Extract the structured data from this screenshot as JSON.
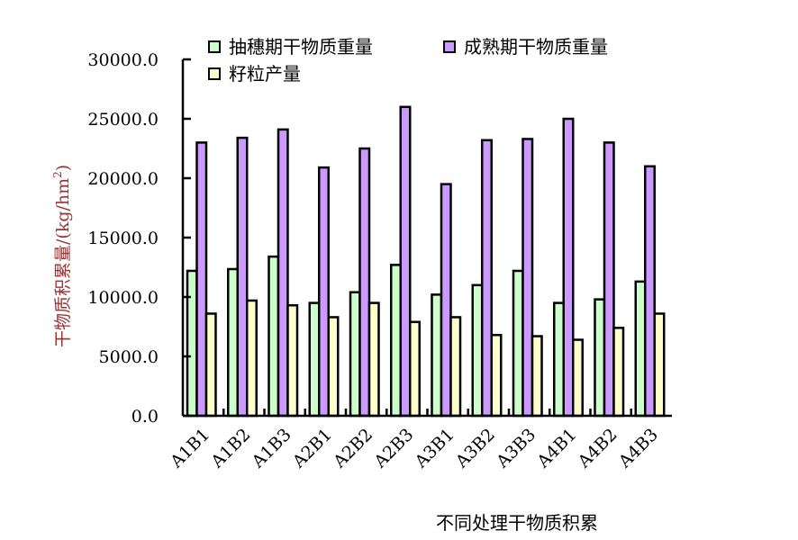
{
  "chart_data": {
    "type": "bar",
    "title": "",
    "xlabel": "不同处理干物质积累",
    "ylabel": "干物质积累量/(kg/hm²)",
    "ylabel_main": "干物质积累量/(kg/hm",
    "ylabel_sup": "2",
    "ylabel_close": ")",
    "ylim": [
      0,
      30000
    ],
    "yticks": [
      "0.0",
      "5000.0",
      "10000.0",
      "15000.0",
      "20000.0",
      "25000.0",
      "30000.0"
    ],
    "legend_position": "top",
    "categories": [
      "A1B1",
      "A1B2",
      "A1B3",
      "A2B1",
      "A2B2",
      "A2B3",
      "A3B1",
      "A3B2",
      "A3B3",
      "A4B1",
      "A4B2",
      "A4B3"
    ],
    "series": [
      {
        "name": "抽穗期干物质重量",
        "color": "#ccffcc",
        "values": [
          12200,
          12350,
          13400,
          9500,
          10400,
          12700,
          10200,
          11000,
          12200,
          9500,
          9800,
          11300
        ]
      },
      {
        "name": "成熟期干物质重量",
        "color": "#cc99ff",
        "values": [
          23000,
          23400,
          24100,
          20900,
          22500,
          26000,
          19500,
          23200,
          23300,
          25000,
          23000,
          21000
        ]
      },
      {
        "name": "籽粒产量",
        "color": "#ffffcc",
        "values": [
          8600,
          9700,
          9300,
          8300,
          9500,
          7900,
          8300,
          6800,
          6700,
          6400,
          7400,
          8600
        ]
      }
    ],
    "ylabel_color": "#993333"
  }
}
